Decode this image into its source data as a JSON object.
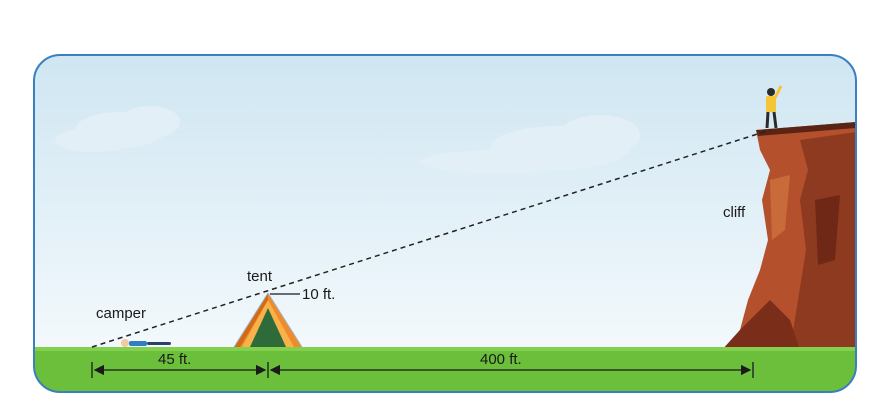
{
  "labels": {
    "camper": "camper",
    "tent": "tent",
    "tent_height": "10 ft.",
    "cliff": "cliff",
    "camper_to_tent": "45 ft.",
    "tent_to_cliff": "400 ft."
  },
  "colors": {
    "frame_border": "#3a7fc0",
    "sky_top": "#cfe6f2",
    "sky_bottom": "#f2f8fb",
    "grass": "#6cbf3b",
    "grass_dark": "#4f9f2a",
    "cliff_face": "#b5502c",
    "cliff_shadow": "#7a2e1a",
    "tent_orange": "#f08a2a",
    "tent_inner": "#2f6b3a",
    "person_shirt": "#f4c534",
    "dashed_line": "#222222"
  }
}
